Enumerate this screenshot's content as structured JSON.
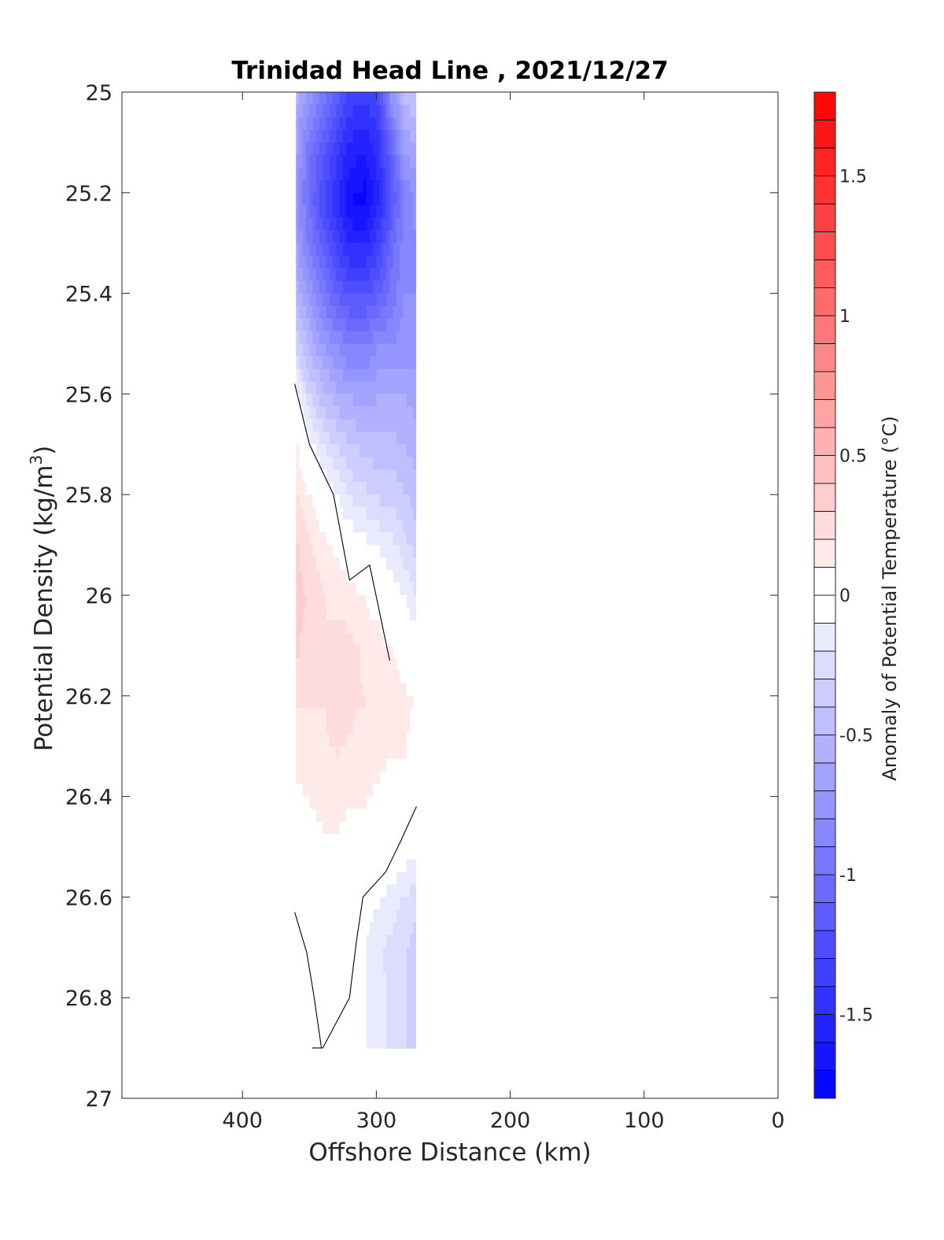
{
  "chart_data": {
    "type": "heatmap",
    "title": "Trinidad Head Line , 2021/12/27",
    "xlabel": "Offshore Distance (km)",
    "ylabel_main": "Potential Density (kg/m",
    "ylabel_sup": "3",
    "ylabel_end": ")",
    "colorbar_label": "Anomaly of Potential Temperature (°C)",
    "xlim": [
      490,
      0
    ],
    "ylim": [
      25,
      27
    ],
    "x_reversed": true,
    "y_reversed": true,
    "x_ticks": [
      400,
      300,
      200,
      100,
      0
    ],
    "x_tick_labels": [
      "400",
      "300",
      "200",
      "100",
      "0"
    ],
    "y_ticks": [
      25,
      25.2,
      25.4,
      25.6,
      25.8,
      26,
      26.2,
      26.4,
      26.6,
      26.8,
      27
    ],
    "y_tick_labels": [
      "25",
      "25.2",
      "25.4",
      "25.6",
      "25.8",
      "26",
      "26.2",
      "26.4",
      "26.6",
      "26.8",
      "27"
    ],
    "colorbar": {
      "clim": [
        -1.8,
        1.8
      ],
      "step": 0.1,
      "ticks": [
        1.5,
        1,
        0.5,
        0,
        -0.5,
        -1,
        -1.5
      ],
      "tick_labels": [
        "1.5",
        "1",
        "0.5",
        "0",
        "-0.5",
        "-1",
        "-1.5"
      ],
      "color_min": "#0000ff",
      "color_mid": "#ffffff",
      "color_max": "#ff0000"
    },
    "grid": false,
    "x": [
      360,
      350,
      340,
      330,
      320,
      310,
      300,
      290,
      280,
      270
    ],
    "y": [
      25.0,
      25.1,
      25.2,
      25.3,
      25.4,
      25.5,
      25.6,
      25.7,
      25.8,
      25.9,
      26.0,
      26.1,
      26.2,
      26.3,
      26.4,
      26.5,
      26.6,
      26.7,
      26.8,
      26.9
    ],
    "z": [
      [
        -0.6,
        -0.8,
        -1.0,
        -1.2,
        -1.35,
        -1.4,
        -1.3,
        -0.8,
        -0.5,
        -0.4
      ],
      [
        -0.7,
        -1.0,
        -1.2,
        -1.4,
        -1.55,
        -1.6,
        -1.45,
        -1.1,
        -0.7,
        -0.6
      ],
      [
        -0.8,
        -1.05,
        -1.3,
        -1.5,
        -1.7,
        -1.75,
        -1.55,
        -1.2,
        -0.9,
        -0.75
      ],
      [
        -0.7,
        -0.95,
        -1.15,
        -1.35,
        -1.5,
        -1.5,
        -1.35,
        -1.05,
        -0.85,
        -0.8
      ],
      [
        -0.55,
        -0.75,
        -0.95,
        -1.1,
        -1.2,
        -1.2,
        -1.1,
        -0.95,
        -0.8,
        -0.8
      ],
      [
        -0.35,
        -0.55,
        -0.7,
        -0.8,
        -0.9,
        -0.9,
        -0.8,
        -0.8,
        -0.75,
        -0.75
      ],
      [
        -0.05,
        -0.3,
        -0.45,
        -0.55,
        -0.6,
        -0.62,
        -0.6,
        -0.58,
        -0.6,
        -0.65
      ],
      [
        0.1,
        -0.05,
        -0.2,
        -0.3,
        -0.38,
        -0.42,
        -0.45,
        -0.45,
        -0.5,
        -0.55
      ],
      [
        0.2,
        0.1,
        0.0,
        -0.1,
        -0.2,
        -0.25,
        -0.3,
        -0.32,
        -0.38,
        -0.45
      ],
      [
        0.3,
        0.2,
        0.15,
        0.08,
        0.0,
        -0.05,
        -0.1,
        -0.15,
        -0.25,
        -0.35
      ],
      [
        0.35,
        0.25,
        0.2,
        0.18,
        0.15,
        0.1,
        0.05,
        -0.02,
        -0.1,
        -0.2
      ],
      [
        0.3,
        0.22,
        0.2,
        0.25,
        0.22,
        0.18,
        0.15,
        0.1,
        0.05,
        0.0
      ],
      [
        0.2,
        0.2,
        0.2,
        0.28,
        0.22,
        0.2,
        0.18,
        0.15,
        0.12,
        0.08
      ],
      [
        0.12,
        0.15,
        0.18,
        0.2,
        0.18,
        0.15,
        0.12,
        0.1,
        0.1,
        0.06
      ],
      [
        0.08,
        0.1,
        0.12,
        0.12,
        0.1,
        0.1,
        0.08,
        0.08,
        0.05,
        0.0
      ],
      [
        0.05,
        0.06,
        0.08,
        0.08,
        0.06,
        0.05,
        0.03,
        0.0,
        -0.05,
        -0.1
      ],
      [
        0.02,
        0.03,
        0.05,
        0.05,
        0.0,
        -0.05,
        -0.1,
        -0.15,
        -0.22,
        -0.28
      ],
      [
        -0.03,
        0.0,
        0.03,
        0.0,
        -0.05,
        -0.1,
        -0.18,
        -0.25,
        -0.3,
        -0.35
      ],
      [
        -0.08,
        -0.02,
        0.02,
        0.0,
        -0.05,
        -0.1,
        -0.15,
        -0.22,
        -0.3,
        -0.35
      ],
      [
        -0.1,
        -0.05,
        0.0,
        0.0,
        -0.03,
        -0.08,
        -0.15,
        -0.22,
        -0.3,
        -0.35
      ]
    ],
    "zero_contours": [
      [
        [
          361,
          25.58
        ],
        [
          350,
          25.7
        ],
        [
          332,
          25.8
        ],
        [
          320,
          25.97
        ],
        [
          305,
          25.94
        ],
        [
          290,
          26.13
        ]
      ],
      [
        [
          270,
          26.42
        ],
        [
          282,
          26.49
        ],
        [
          293,
          26.55
        ],
        [
          310,
          26.6
        ],
        [
          315,
          26.69
        ],
        [
          320,
          26.8
        ],
        [
          340,
          26.9
        ],
        [
          348,
          26.9
        ]
      ],
      [
        [
          361,
          26.63
        ],
        [
          352,
          26.71
        ],
        [
          347,
          26.79
        ],
        [
          341,
          26.9
        ]
      ]
    ]
  }
}
